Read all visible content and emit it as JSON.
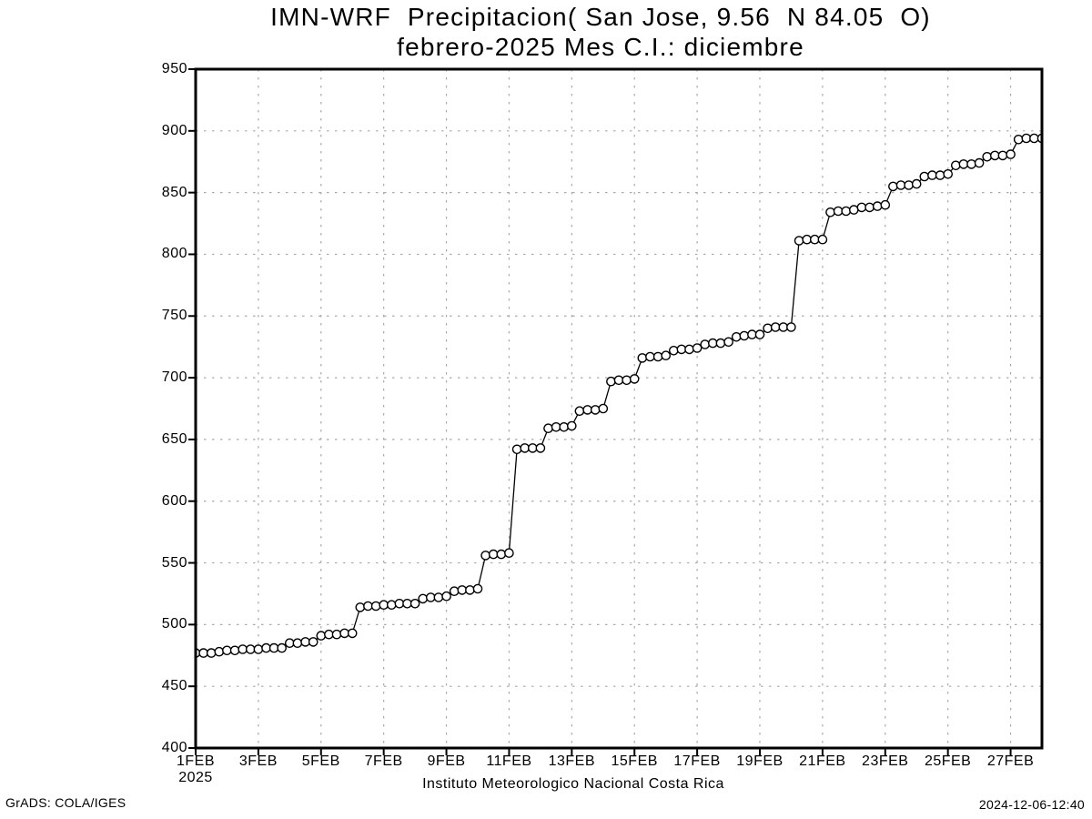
{
  "page": {
    "background": "#ffffff",
    "text_color": "#000000"
  },
  "header": {
    "title_line1": "IMN-WRF  Precipitacion( San Jose, 9.56  N 84.05  O)",
    "title_line2": "febrero-2025 Mes C.I.: diciembre"
  },
  "footer": {
    "grads_credit": "GrADS: COLA/IGES",
    "timestamp": "2024-12-06-12:40"
  },
  "chart_data": {
    "type": "line",
    "title": "IMN-WRF  Precipitacion( San Jose, 9.56  N 84.05  O)",
    "subtitle": "febrero-2025 Mes C.I.: diciembre",
    "xlabel": "Instituto Meteorologico Nacional Costa Rica",
    "ylabel": "",
    "marker": "open-circle",
    "line_color": "#000000",
    "marker_fill": "#ffffff",
    "grid_color": "#a9a9a9",
    "grid_style": "dotted",
    "legend": "none",
    "ylim": [
      400,
      950
    ],
    "y_tick_step": 50,
    "y_tick_values": [
      400,
      450,
      500,
      550,
      600,
      650,
      700,
      750,
      800,
      850,
      900,
      950
    ],
    "x_axis": {
      "start": "1FEB2025",
      "interval": "6-hourly",
      "days_span": [
        1,
        28
      ],
      "tick_days": [
        1,
        3,
        5,
        7,
        9,
        11,
        13,
        15,
        17,
        19,
        21,
        23,
        25,
        27
      ],
      "tick_labels": [
        "1FEB",
        "3FEB",
        "5FEB",
        "7FEB",
        "9FEB",
        "11FEB",
        "13FEB",
        "15FEB",
        "17FEB",
        "19FEB",
        "21FEB",
        "23FEB",
        "25FEB",
        "27FEB"
      ],
      "year_sublabel": "2025"
    },
    "points_per_day": 4,
    "values": [
      477,
      477,
      477,
      478,
      479,
      479,
      480,
      480,
      480,
      481,
      481,
      481,
      485,
      485,
      486,
      486,
      491,
      492,
      492,
      493,
      493,
      514,
      515,
      515,
      516,
      516,
      517,
      517,
      517,
      521,
      522,
      522,
      523,
      527,
      528,
      528,
      529,
      556,
      557,
      557,
      558,
      642,
      643,
      643,
      643,
      659,
      660,
      660,
      661,
      673,
      674,
      674,
      675,
      697,
      698,
      698,
      699,
      716,
      717,
      717,
      718,
      722,
      723,
      723,
      724,
      727,
      728,
      728,
      729,
      733,
      734,
      735,
      735,
      740,
      741,
      741,
      741,
      811,
      812,
      812,
      812,
      834,
      835,
      835,
      836,
      838,
      838,
      839,
      840,
      855,
      856,
      856,
      857,
      863,
      864,
      864,
      865,
      872,
      873,
      873,
      874,
      879,
      880,
      880,
      881,
      893,
      894,
      894,
      894
    ]
  }
}
